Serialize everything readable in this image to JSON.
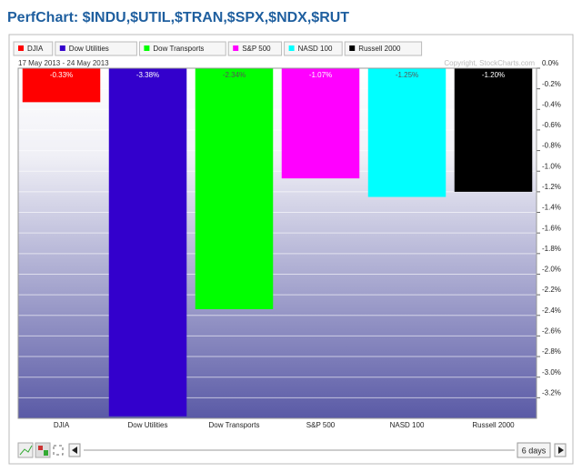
{
  "title": "PerfChart: $INDU,$UTIL,$TRAN,$SPX,$NDX,$RUT",
  "chart_data": {
    "type": "bar",
    "date_range": "17 May 2013 - 24 May 2013",
    "copyright": "Copyright, StockCharts.com",
    "categories": [
      "DJIA",
      "Dow Utilities",
      "Dow Transports",
      "S&P 500",
      "NASD 100",
      "Russell 2000"
    ],
    "values": [
      -0.33,
      -3.38,
      -2.34,
      -1.07,
      -1.25,
      -1.2
    ],
    "value_labels": [
      "-0.33%",
      "-3.38%",
      "-2.34%",
      "-1.07%",
      "-1.25%",
      "-1.20%"
    ],
    "colors": [
      "#ff0000",
      "#3300cc",
      "#00ff00",
      "#ff00ff",
      "#00ffff",
      "#000000"
    ],
    "ylim": [
      -3.4,
      0
    ],
    "yticks": [
      {
        "value": 0,
        "label": "0.0%"
      },
      {
        "value": -0.2,
        "label": "-0.2%"
      },
      {
        "value": -0.4,
        "label": "-0.4%"
      },
      {
        "value": -0.6,
        "label": "-0.6%"
      },
      {
        "value": -0.8,
        "label": "-0.8%"
      },
      {
        "value": -1.0,
        "label": "-1.0%"
      },
      {
        "value": -1.2,
        "label": "-1.2%"
      },
      {
        "value": -1.4,
        "label": "-1.4%"
      },
      {
        "value": -1.6,
        "label": "-1.6%"
      },
      {
        "value": -1.8,
        "label": "-1.8%"
      },
      {
        "value": -2.0,
        "label": "-2.0%"
      },
      {
        "value": -2.2,
        "label": "-2.2%"
      },
      {
        "value": -2.4,
        "label": "-2.4%"
      },
      {
        "value": -2.6,
        "label": "-2.6%"
      },
      {
        "value": -2.8,
        "label": "-2.8%"
      },
      {
        "value": -3.0,
        "label": "-3.0%"
      },
      {
        "value": -3.2,
        "label": "-3.2%"
      }
    ],
    "grid": true,
    "period": "6 days"
  }
}
